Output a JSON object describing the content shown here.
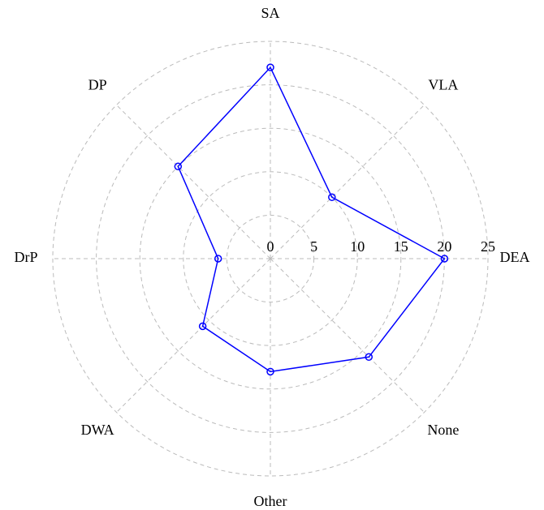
{
  "chart_data": {
    "type": "radar",
    "categories": [
      "DEA",
      "VLA",
      "SA",
      "DP",
      "DrP",
      "DWA",
      "Other",
      "None"
    ],
    "values": [
      20,
      10,
      22,
      15,
      6,
      11,
      13,
      16
    ],
    "color": "#0000ff",
    "ylim": [
      0,
      25
    ],
    "yticks": [
      0,
      5,
      10,
      15,
      20,
      25
    ],
    "grid": true
  }
}
